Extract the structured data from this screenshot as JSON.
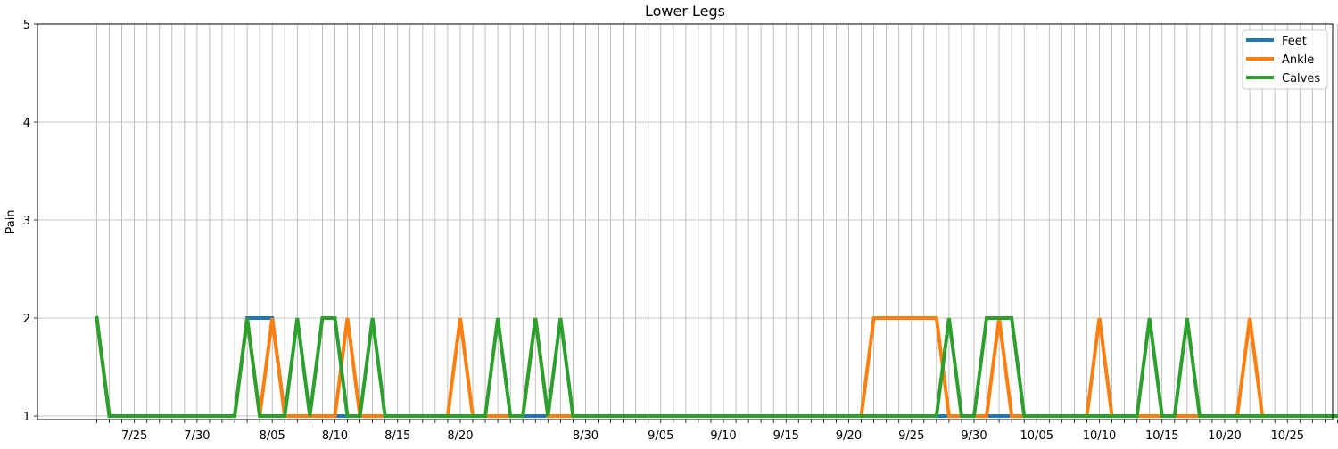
{
  "chart_data": {
    "type": "line",
    "title": "Lower Legs",
    "xlabel": "",
    "ylabel": "Pain",
    "ylim": [
      1,
      5
    ],
    "yticks": [
      1,
      2,
      3,
      4,
      5
    ],
    "x_start": "7/22",
    "x_end": "10/30",
    "grid": true,
    "legend_position": "top-right",
    "x_tick_labels": [
      "7/25",
      "7/30",
      "8/05",
      "8/10",
      "8/15",
      "8/20",
      "8/30",
      "9/05",
      "9/10",
      "9/15",
      "9/20",
      "9/25",
      "9/30",
      "10/05",
      "10/10",
      "10/15",
      "10/20",
      "10/25"
    ],
    "series": [
      {
        "name": "Feet",
        "color": "#1f77b4",
        "values": [
          2,
          1,
          1,
          1,
          1,
          1,
          1,
          1,
          1,
          1,
          1,
          1,
          2,
          2,
          2,
          1,
          1,
          1,
          1,
          1,
          1,
          1,
          1,
          1,
          1,
          1,
          1,
          1,
          1,
          1,
          1,
          1,
          1,
          1,
          1,
          1,
          1,
          1,
          1,
          1,
          1,
          1,
          1,
          1,
          1,
          1,
          1,
          1,
          1,
          1,
          1,
          1,
          1,
          1,
          1,
          1,
          1,
          1,
          1,
          1,
          1,
          1,
          1,
          1,
          1,
          1,
          1,
          1,
          1,
          1,
          1,
          1,
          1,
          1,
          1,
          1,
          1,
          1,
          1,
          1,
          1,
          1,
          1,
          1,
          1,
          1,
          1,
          1,
          1,
          1,
          1,
          1,
          1,
          1,
          1,
          1,
          1,
          1,
          1,
          1,
          1
        ]
      },
      {
        "name": "Ankle",
        "color": "#ff7f0e",
        "values": [
          2,
          1,
          1,
          1,
          1,
          1,
          1,
          1,
          1,
          1,
          1,
          1,
          2,
          1,
          2,
          1,
          1,
          1,
          1,
          1,
          2,
          1,
          1,
          1,
          1,
          1,
          1,
          1,
          1,
          2,
          1,
          1,
          1,
          1,
          1,
          2,
          1,
          1,
          1,
          1,
          1,
          1,
          1,
          1,
          1,
          1,
          1,
          1,
          1,
          1,
          1,
          1,
          1,
          1,
          1,
          1,
          1,
          1,
          1,
          1,
          1,
          1,
          2,
          2,
          2,
          2,
          2,
          2,
          1,
          1,
          1,
          1,
          2,
          1,
          1,
          1,
          1,
          1,
          1,
          1,
          2,
          1,
          1,
          1,
          1,
          1,
          1,
          1,
          1,
          1,
          1,
          1,
          2,
          1,
          1,
          1,
          1,
          1,
          1,
          1,
          1
        ]
      },
      {
        "name": "Calves",
        "color": "#2ca02c",
        "values": [
          2,
          1,
          1,
          1,
          1,
          1,
          1,
          1,
          1,
          1,
          1,
          1,
          2,
          1,
          1,
          1,
          2,
          1,
          2,
          2,
          1,
          1,
          2,
          1,
          1,
          1,
          1,
          1,
          1,
          1,
          1,
          1,
          2,
          1,
          1,
          2,
          1,
          2,
          1,
          1,
          1,
          1,
          1,
          1,
          1,
          1,
          1,
          1,
          1,
          1,
          1,
          1,
          1,
          1,
          1,
          1,
          1,
          1,
          1,
          1,
          1,
          1,
          1,
          1,
          1,
          1,
          1,
          1,
          2,
          1,
          1,
          2,
          2,
          2,
          1,
          1,
          1,
          1,
          1,
          1,
          1,
          1,
          1,
          1,
          2,
          1,
          1,
          2,
          1,
          1,
          1,
          1,
          1,
          1,
          1,
          1,
          1,
          1,
          1,
          1,
          1
        ]
      }
    ]
  }
}
